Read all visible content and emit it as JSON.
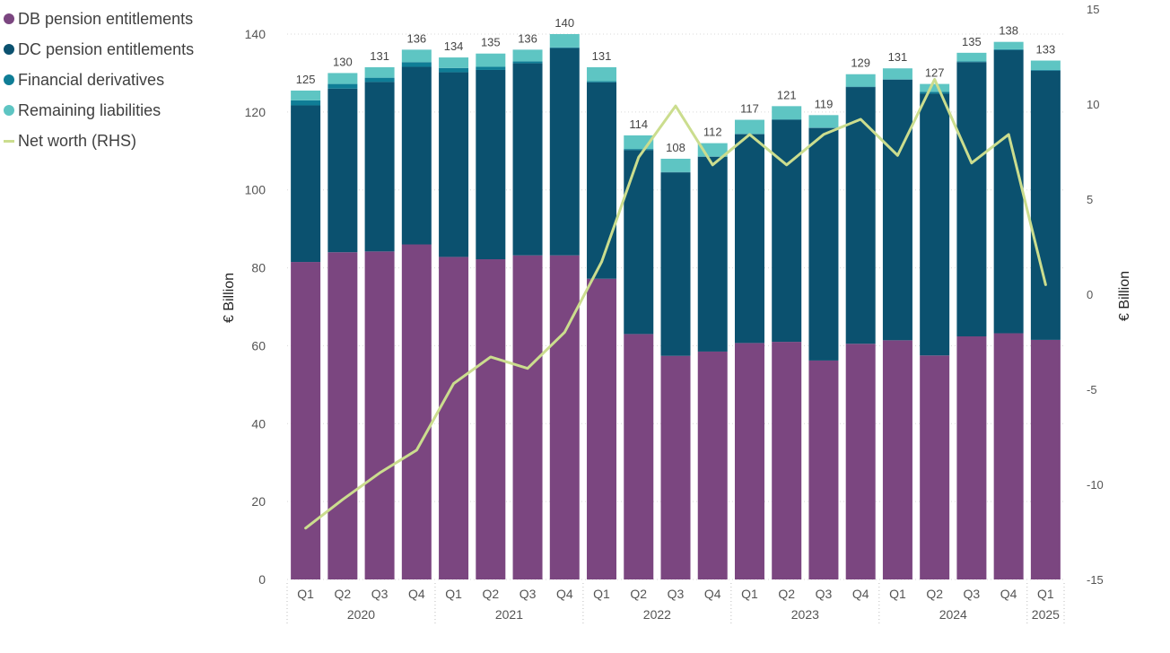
{
  "colors": {
    "db": "#7b4680",
    "dc": "#0b516f",
    "fd": "#0f7d96",
    "rem": "#5ec5c3",
    "net": "#cbdd8e"
  },
  "chart_data": {
    "type": "bar",
    "stacked": true,
    "ylabel": "€ Billion",
    "y2label": "€ Billion",
    "ylim": [
      0,
      140
    ],
    "yticks": [
      0,
      20,
      40,
      60,
      80,
      100,
      120,
      140
    ],
    "y2lim": [
      -15,
      15
    ],
    "y2ticks": [
      -15,
      -10,
      -5,
      0,
      5,
      10,
      15
    ],
    "categories": [
      "Q1",
      "Q2",
      "Q3",
      "Q4",
      "Q1",
      "Q2",
      "Q3",
      "Q4",
      "Q1",
      "Q2",
      "Q3",
      "Q4",
      "Q1",
      "Q2",
      "Q3",
      "Q4",
      "Q1",
      "Q2",
      "Q3",
      "Q4",
      "Q1"
    ],
    "years": [
      {
        "label": "2020",
        "count": 4
      },
      {
        "label": "2021",
        "count": 4
      },
      {
        "label": "2022",
        "count": 4
      },
      {
        "label": "2023",
        "count": 4
      },
      {
        "label": "2024",
        "count": 4
      },
      {
        "label": "2025",
        "count": 1
      }
    ],
    "totals": [
      "125",
      "130",
      "131",
      "136",
      "134",
      "135",
      "136",
      "140",
      "131",
      "114",
      "108",
      "112",
      "117",
      "121",
      "119",
      "129",
      "131",
      "127",
      "135",
      "138",
      "133"
    ],
    "series": [
      {
        "key": "db",
        "name": "DB pension entitlements",
        "values": [
          81.5,
          84,
          84.2,
          86,
          82.8,
          82.2,
          83.2,
          83.2,
          77.2,
          63,
          57.4,
          58.5,
          60.7,
          61,
          56.2,
          60.5,
          61.4,
          57.5,
          62.4,
          63.2,
          61.5
        ]
      },
      {
        "key": "dc",
        "name": "DC pension entitlements",
        "values": [
          40.2,
          42,
          43.5,
          45.6,
          47.4,
          48.6,
          49.3,
          53.2,
          50.4,
          47.2,
          47.1,
          50,
          53.6,
          57,
          59.7,
          65.9,
          66.9,
          67.2,
          70.4,
          72.7,
          69.1
        ]
      },
      {
        "key": "fd",
        "name": "Financial derivatives",
        "values": [
          1.3,
          1.2,
          1.1,
          1.2,
          1.1,
          0.8,
          0.5,
          0.2,
          0.3,
          0.3,
          0.1,
          0.1,
          0.1,
          0.1,
          0.1,
          0.1,
          0.1,
          0.5,
          0.2,
          0.2,
          0.2
        ]
      },
      {
        "key": "rem",
        "name": "Remaining liabilities",
        "values": [
          2.5,
          2.8,
          2.7,
          3.2,
          2.7,
          3.4,
          3,
          3.4,
          3.6,
          3.5,
          3.4,
          3.4,
          3.6,
          3.4,
          3.2,
          3.2,
          2.8,
          2,
          2.2,
          1.9,
          2.4
        ]
      }
    ],
    "line": {
      "key": "net",
      "name": "Net worth (RHS)",
      "axis": "right",
      "values": [
        -12.3,
        -10.8,
        -9.4,
        -8.2,
        -4.7,
        -3.3,
        -3.9,
        -2,
        1.7,
        7.2,
        9.9,
        6.8,
        8.4,
        6.8,
        8.4,
        9.2,
        7.3,
        11.3,
        6.9,
        8.4,
        0.5
      ]
    }
  }
}
